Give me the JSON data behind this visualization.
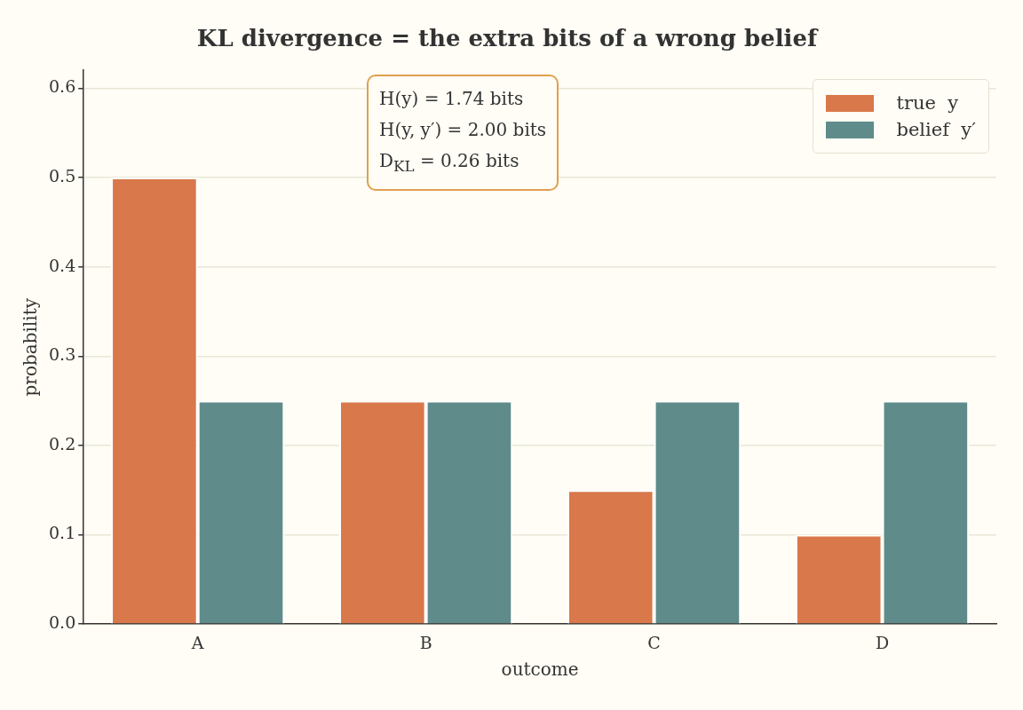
{
  "chart_data": {
    "type": "bar",
    "title": "KL divergence = the extra bits of a wrong belief",
    "xlabel": "outcome",
    "ylabel": "probability",
    "categories": [
      "A",
      "B",
      "C",
      "D"
    ],
    "series": [
      {
        "name": "true  y",
        "color": "#d9784a",
        "values": [
          0.5,
          0.25,
          0.15,
          0.1
        ]
      },
      {
        "name": "belief  y′",
        "color": "#5f8b8b",
        "values": [
          0.25,
          0.25,
          0.25,
          0.25
        ]
      }
    ],
    "ylim": [
      0,
      0.62
    ],
    "yticks": [
      {
        "value": 0,
        "label": "0.0"
      },
      0.1,
      0.2,
      0.3,
      0.4,
      0.5,
      0.6
    ],
    "grid": "y",
    "legend": "top right",
    "annotations": [
      "H(y) = 1.74 bits\nH(y, y′) = 2.00 bits\nD$_{KL}$ = 0.26 bits"
    ]
  }
}
